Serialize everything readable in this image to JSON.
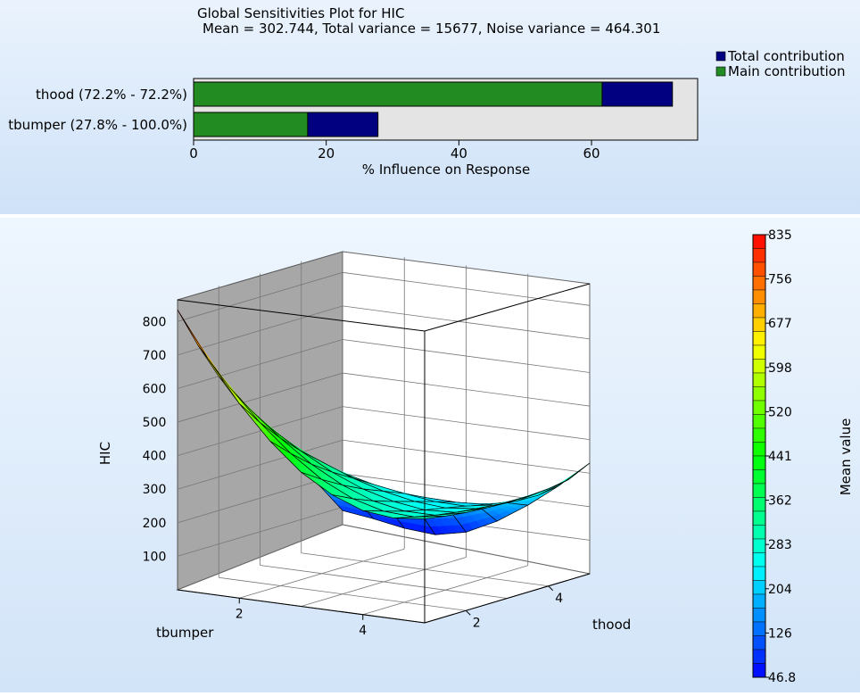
{
  "sensitivity": {
    "title": "Global Sensitivities Plot for HIC",
    "subtitle": "Mean = 302.744, Total variance = 15677, Noise variance = 464.301",
    "legend": {
      "total_label": "Total contribution",
      "main_label": "Main contribution",
      "colors": {
        "total": "#000080",
        "main": "#228b22"
      }
    },
    "chart_data": {
      "type": "bar",
      "orientation": "horizontal",
      "stacked": "overlay",
      "categories": [
        "thood (72.2% - 72.2%)",
        "tbumper (27.8% - 100.0%)"
      ],
      "series": [
        {
          "name": "Total contribution",
          "values": [
            72.2,
            27.8
          ]
        },
        {
          "name": "Main contribution",
          "values": [
            61.6,
            17.2
          ]
        }
      ],
      "xlabel": "% Influence on Response",
      "xlim": [
        0,
        76
      ],
      "xticks": [
        "0",
        "20",
        "40",
        "60"
      ],
      "legend_position": "top-right"
    }
  },
  "surface": {
    "zlabel": "HIC",
    "xlabel": "tbumper",
    "ylabel": "thood",
    "zticks": [
      "100",
      "200",
      "300",
      "400",
      "500",
      "600",
      "700",
      "800"
    ],
    "xticks": [
      "2",
      "4"
    ],
    "yticks": [
      "2",
      "4"
    ],
    "colorbar": {
      "label": "Mean value",
      "ticks": [
        "835",
        "756",
        "677",
        "598",
        "520",
        "441",
        "362",
        "283",
        "204",
        "126",
        "46.8"
      ]
    },
    "chart_data": {
      "type": "surface",
      "x_name": "tbumper",
      "y_name": "thood",
      "z_name": "HIC",
      "x": [
        1,
        1.5,
        2,
        2.5,
        3,
        3.5,
        4,
        4.5,
        5
      ],
      "y": [
        1,
        1.5,
        2,
        2.5,
        3,
        3.5,
        4,
        4.5,
        5
      ],
      "z": [
        [
          835,
          700,
          580,
          480,
          400,
          345,
          310,
          300,
          310
        ],
        [
          710,
          600,
          505,
          425,
          360,
          315,
          290,
          285,
          300
        ],
        [
          600,
          515,
          440,
          375,
          325,
          290,
          272,
          272,
          292
        ],
        [
          500,
          440,
          383,
          333,
          295,
          270,
          257,
          262,
          288
        ],
        [
          410,
          370,
          333,
          297,
          270,
          252,
          245,
          255,
          285
        ],
        [
          330,
          305,
          282,
          260,
          245,
          233,
          232,
          248,
          286
        ],
        [
          250,
          240,
          228,
          218,
          215,
          213,
          218,
          242,
          290
        ],
        [
          175,
          168,
          162,
          165,
          175,
          188,
          205,
          240,
          300
        ],
        [
          90,
          78,
          62,
          55,
          75,
          120,
          180,
          250,
          330
        ]
      ],
      "zlim": [
        46.8,
        835
      ],
      "colormap": [
        "#0000ff",
        "#00ffff",
        "#00ff00",
        "#ffff00",
        "#ff0000"
      ]
    }
  }
}
